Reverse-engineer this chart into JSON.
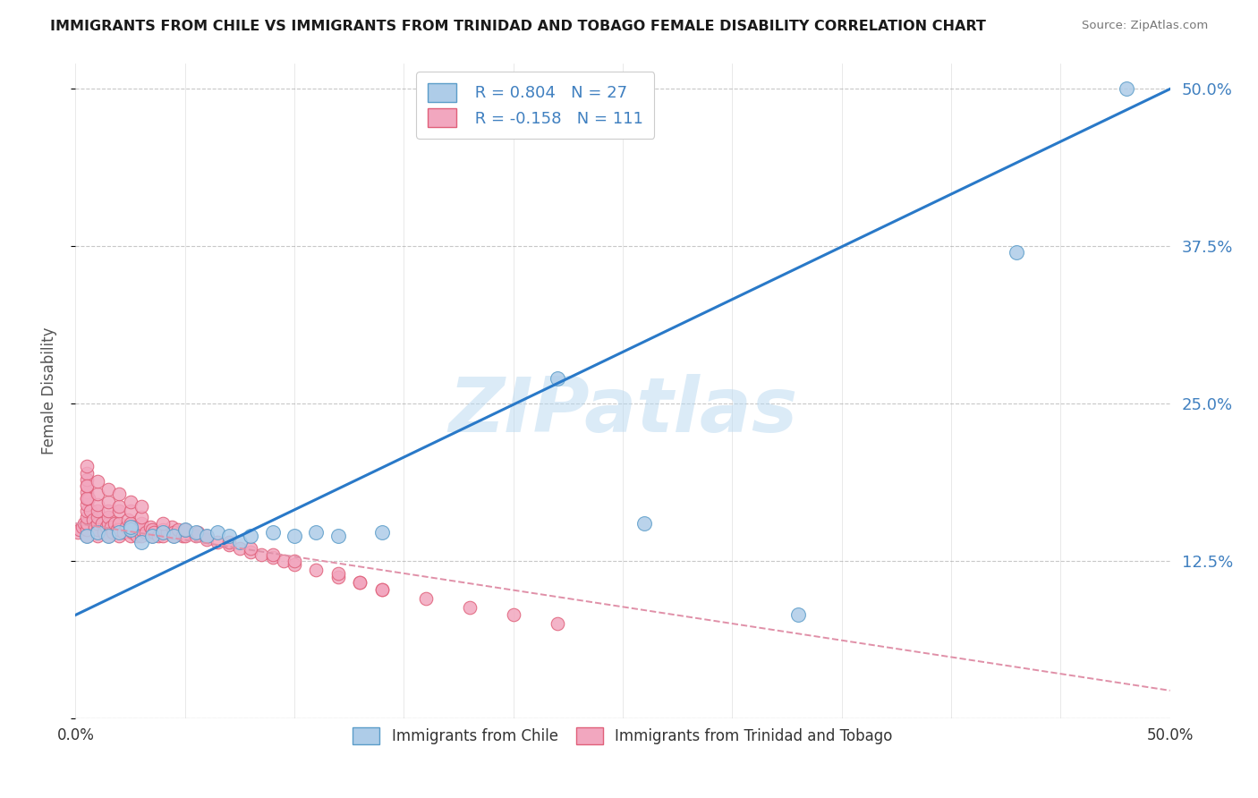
{
  "title": "IMMIGRANTS FROM CHILE VS IMMIGRANTS FROM TRINIDAD AND TOBAGO FEMALE DISABILITY CORRELATION CHART",
  "source": "Source: ZipAtlas.com",
  "ylabel": "Female Disability",
  "xlim": [
    0.0,
    0.5
  ],
  "ylim": [
    0.0,
    0.52
  ],
  "y_ticks": [
    0.0,
    0.125,
    0.25,
    0.375,
    0.5
  ],
  "y_tick_labels": [
    "",
    "12.5%",
    "25.0%",
    "37.5%",
    "50.0%"
  ],
  "x_ticks": [
    0.0,
    0.05,
    0.1,
    0.15,
    0.2,
    0.25,
    0.3,
    0.35,
    0.4,
    0.45,
    0.5
  ],
  "chile_color": "#aecce8",
  "chile_edge_color": "#5b9dc9",
  "tt_color": "#f2a7bf",
  "tt_edge_color": "#e0607a",
  "blue_line_color": "#2979c8",
  "pink_line_color": "#e090a8",
  "blue_line_x0": 0.0,
  "blue_line_y0": 0.082,
  "blue_line_x1": 0.5,
  "blue_line_y1": 0.5,
  "pink_line_x0": 0.0,
  "pink_line_y0": 0.155,
  "pink_line_x1": 0.5,
  "pink_line_y1": 0.022,
  "watermark_text": "ZIPatlas",
  "legend_chile_label": " R = 0.804   N = 27",
  "legend_tt_label": " R = -0.158   N = 111",
  "legend_chile_bottom": "Immigrants from Chile",
  "legend_tt_bottom": "Immigrants from Trinidad and Tobago",
  "grid_color": "#c8c8c8",
  "background_color": "#ffffff",
  "right_tick_color": "#4080c0",
  "chile_x": [
    0.005,
    0.01,
    0.015,
    0.02,
    0.025,
    0.025,
    0.03,
    0.035,
    0.04,
    0.045,
    0.05,
    0.055,
    0.06,
    0.065,
    0.07,
    0.075,
    0.08,
    0.09,
    0.1,
    0.11,
    0.12,
    0.14,
    0.22,
    0.26,
    0.33,
    0.43,
    0.48
  ],
  "chile_y": [
    0.145,
    0.148,
    0.145,
    0.148,
    0.15,
    0.152,
    0.14,
    0.145,
    0.148,
    0.145,
    0.15,
    0.148,
    0.145,
    0.148,
    0.145,
    0.14,
    0.145,
    0.148,
    0.145,
    0.148,
    0.145,
    0.148,
    0.27,
    0.155,
    0.082,
    0.37,
    0.5
  ],
  "tt_x": [
    0.001,
    0.002,
    0.003,
    0.004,
    0.005,
    0.005,
    0.005,
    0.005,
    0.005,
    0.005,
    0.005,
    0.005,
    0.005,
    0.005,
    0.005,
    0.005,
    0.006,
    0.007,
    0.008,
    0.009,
    0.01,
    0.01,
    0.01,
    0.01,
    0.01,
    0.01,
    0.012,
    0.013,
    0.014,
    0.015,
    0.015,
    0.015,
    0.015,
    0.016,
    0.017,
    0.018,
    0.019,
    0.02,
    0.02,
    0.02,
    0.02,
    0.022,
    0.023,
    0.024,
    0.025,
    0.025,
    0.025,
    0.026,
    0.027,
    0.028,
    0.029,
    0.03,
    0.03,
    0.03,
    0.032,
    0.034,
    0.035,
    0.035,
    0.036,
    0.038,
    0.04,
    0.04,
    0.042,
    0.044,
    0.045,
    0.045,
    0.047,
    0.049,
    0.05,
    0.05,
    0.055,
    0.056,
    0.06,
    0.065,
    0.07,
    0.075,
    0.08,
    0.085,
    0.09,
    0.095,
    0.1,
    0.11,
    0.12,
    0.13,
    0.14,
    0.005,
    0.005,
    0.01,
    0.01,
    0.015,
    0.015,
    0.02,
    0.02,
    0.025,
    0.025,
    0.03,
    0.03,
    0.04,
    0.05,
    0.06,
    0.07,
    0.08,
    0.09,
    0.1,
    0.12,
    0.13,
    0.14,
    0.16,
    0.18,
    0.2,
    0.22
  ],
  "tt_y": [
    0.148,
    0.15,
    0.152,
    0.155,
    0.145,
    0.15,
    0.155,
    0.16,
    0.165,
    0.17,
    0.175,
    0.18,
    0.185,
    0.19,
    0.195,
    0.2,
    0.175,
    0.165,
    0.158,
    0.152,
    0.145,
    0.15,
    0.155,
    0.16,
    0.165,
    0.17,
    0.155,
    0.148,
    0.152,
    0.145,
    0.155,
    0.16,
    0.165,
    0.152,
    0.148,
    0.155,
    0.15,
    0.145,
    0.15,
    0.155,
    0.165,
    0.148,
    0.152,
    0.158,
    0.145,
    0.15,
    0.155,
    0.148,
    0.152,
    0.145,
    0.15,
    0.145,
    0.15,
    0.155,
    0.148,
    0.152,
    0.145,
    0.15,
    0.148,
    0.145,
    0.145,
    0.15,
    0.148,
    0.152,
    0.145,
    0.148,
    0.15,
    0.145,
    0.145,
    0.15,
    0.145,
    0.148,
    0.142,
    0.14,
    0.138,
    0.135,
    0.132,
    0.13,
    0.128,
    0.125,
    0.122,
    0.118,
    0.112,
    0.108,
    0.102,
    0.175,
    0.185,
    0.178,
    0.188,
    0.172,
    0.182,
    0.168,
    0.178,
    0.165,
    0.172,
    0.16,
    0.168,
    0.155,
    0.15,
    0.145,
    0.14,
    0.135,
    0.13,
    0.125,
    0.115,
    0.108,
    0.102,
    0.095,
    0.088,
    0.082,
    0.075
  ]
}
